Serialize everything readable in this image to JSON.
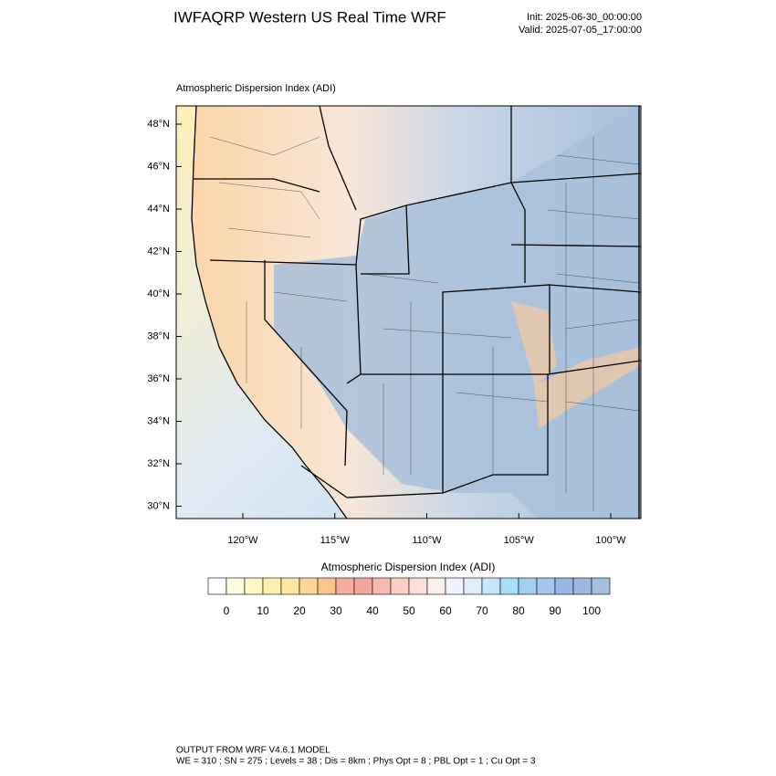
{
  "header": {
    "title": "IWFAQRP Western US Real Time WRF",
    "init": "Init: 2025-06-30_00:00:00",
    "valid": "Valid: 2025-07-05_17:00:00"
  },
  "map": {
    "title": "Atmospheric Dispersion Index   (ADI)",
    "lat_labels": [
      "48°N",
      "46°N",
      "44°N",
      "42°N",
      "40°N",
      "38°N",
      "36°N",
      "34°N",
      "32°N",
      "30°N"
    ],
    "lon_labels": [
      "120°W",
      "115°W",
      "110°W",
      "105°W",
      "100°W"
    ]
  },
  "colorbar": {
    "title": "Atmospheric Dispersion Index  (ADI)",
    "ticks": [
      0,
      10,
      20,
      30,
      40,
      50,
      60,
      70,
      80,
      90,
      100
    ],
    "colors": [
      "#ffffff",
      "#fffde2",
      "#fff6c4",
      "#ffefb2",
      "#ffe7a2",
      "#fdd79a",
      "#fbc58e",
      "#f6ad9e",
      "#f4a59e",
      "#f7bbb3",
      "#f9cfc7",
      "#fbe0dc",
      "#fdeeee",
      "#f3f3ff",
      "#e0eefa",
      "#c6e7f8",
      "#a8dff8",
      "#a0cff0",
      "#a6c6f0",
      "#98b6e6",
      "#9fb7de",
      "#a8bfdb"
    ]
  },
  "footer": {
    "line1": "OUTPUT FROM WRF V4.6.1 MODEL",
    "line2": "WE = 310 ; SN = 275 ; Levels = 38 ; Dis = 8km ; Phys Opt = 8 ; PBL Opt = 1 ; Cu Opt = 3"
  }
}
